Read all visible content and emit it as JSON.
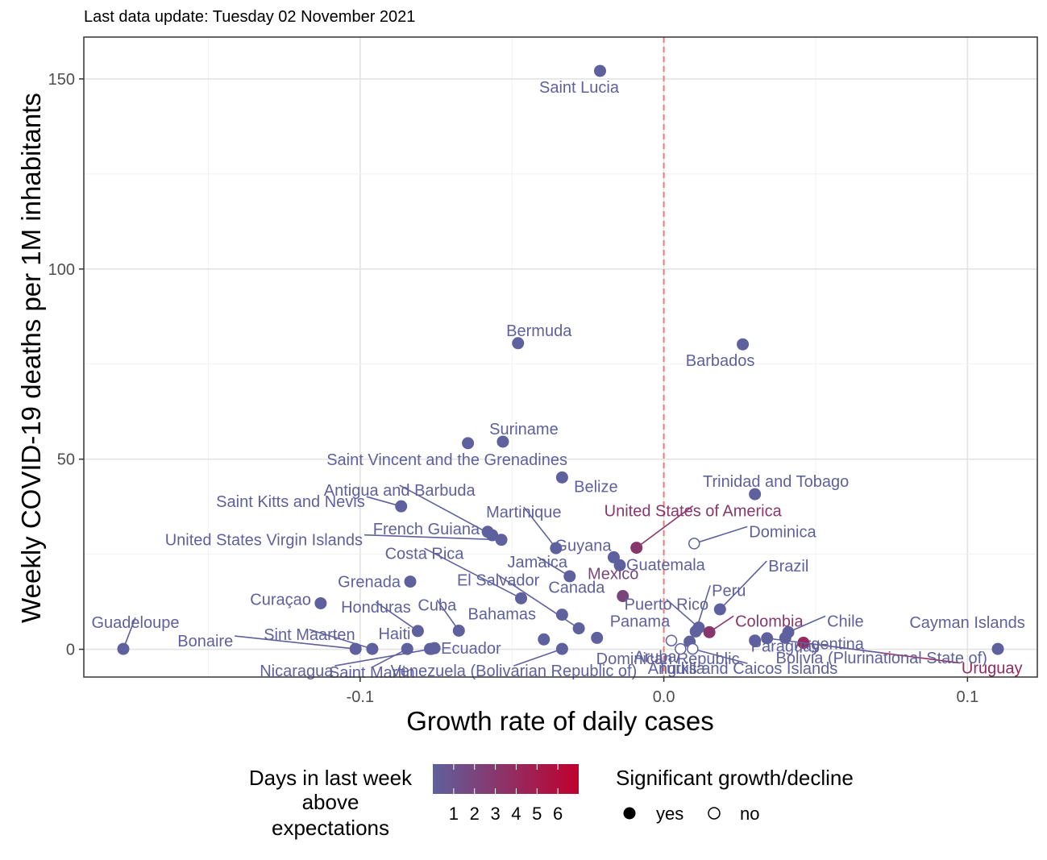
{
  "subtitle": "Last data update: Tuesday 02 November 2021",
  "colors": {
    "low": "#5e619d",
    "high": "#c0002e",
    "ref_line": "#f07a72",
    "grid_major": "#e3e3e3",
    "grid_minor": "#f1f1f1"
  },
  "legend": {
    "color_title_lines": [
      "Days in last week",
      "above",
      "expectations"
    ],
    "color_ticks": [
      "1",
      "2",
      "3",
      "4",
      "5",
      "6"
    ],
    "shape_title": "Significant growth/decline",
    "shape_yes": "yes",
    "shape_no": "no"
  },
  "chart_data": {
    "type": "scatter",
    "xlabel": "Growth rate of daily cases",
    "ylabel": "Weekly COVID-19 deaths per 1M inhabitants",
    "xlim": [
      -0.191,
      0.123
    ],
    "ylim": [
      -7.3,
      161
    ],
    "x_ticks": [
      {
        "value": -0.1,
        "label": "-0.1"
      },
      {
        "value": 0,
        "label": "0.0"
      },
      {
        "value": 0.1,
        "label": "0.1"
      }
    ],
    "y_ticks": [
      {
        "value": 0,
        "label": "0"
      },
      {
        "value": 50,
        "label": "50"
      },
      {
        "value": 100,
        "label": "100"
      },
      {
        "value": 150,
        "label": "150"
      }
    ],
    "grid": true,
    "reference_line_x": 0,
    "legend_position": "bottom",
    "points": [
      {
        "name": "Saint Lucia",
        "x": -0.021,
        "y": 152.1,
        "days": 0,
        "significant": true
      },
      {
        "name": "Bermuda",
        "x": -0.048,
        "y": 80.5,
        "days": 0,
        "significant": true
      },
      {
        "name": "Barbados",
        "x": 0.026,
        "y": 80.2,
        "days": 0,
        "significant": true
      },
      {
        "name": "Suriname",
        "x": -0.053,
        "y": 54.6,
        "days": 0,
        "significant": true
      },
      {
        "name": "Saint Vincent and the Grenadines",
        "x": -0.0645,
        "y": 54.2,
        "days": 0,
        "significant": true
      },
      {
        "name": "Belize",
        "x": -0.0335,
        "y": 45.2,
        "days": 0,
        "significant": true
      },
      {
        "name": "Trinidad and Tobago",
        "x": 0.03,
        "y": 40.8,
        "days": 0,
        "significant": true
      },
      {
        "name": "Saint Kitts and Nevis",
        "x": -0.0865,
        "y": 37.6,
        "days": 0,
        "significant": true
      },
      {
        "name": "Antigua and Barbuda",
        "x": -0.0565,
        "y": 30.0,
        "days": 0,
        "significant": true
      },
      {
        "name": "French Guiana",
        "x": -0.058,
        "y": 30.9,
        "days": 0,
        "significant": true
      },
      {
        "name": "United States Virgin Islands",
        "x": -0.0535,
        "y": 28.8,
        "days": 0,
        "significant": true
      },
      {
        "name": "United States of America",
        "x": -0.009,
        "y": 26.7,
        "days": 3,
        "significant": true
      },
      {
        "name": "Dominica",
        "x": 0.01,
        "y": 27.8,
        "days": 0,
        "significant": false
      },
      {
        "name": "Martinique",
        "x": -0.0355,
        "y": 26.6,
        "days": 0,
        "significant": true
      },
      {
        "name": "Guyana",
        "x": -0.0165,
        "y": 24.2,
        "days": 0,
        "significant": true
      },
      {
        "name": "Guatemala",
        "x": -0.0145,
        "y": 22.1,
        "days": 0,
        "significant": true
      },
      {
        "name": "Jamaica",
        "x": -0.031,
        "y": 19.2,
        "days": 0,
        "significant": true
      },
      {
        "name": "Grenada",
        "x": -0.0835,
        "y": 17.8,
        "days": 0,
        "significant": true
      },
      {
        "name": "Costa Rica",
        "x": -0.047,
        "y": 13.4,
        "days": 0,
        "significant": true
      },
      {
        "name": "Mexico",
        "x": -0.0135,
        "y": 14.0,
        "days": 2,
        "significant": true
      },
      {
        "name": "Curaçao",
        "x": -0.113,
        "y": 12.1,
        "days": 0,
        "significant": true
      },
      {
        "name": "Brazil",
        "x": 0.0185,
        "y": 10.5,
        "days": 0,
        "significant": true
      },
      {
        "name": "Canada",
        "x": -0.0335,
        "y": 9.1,
        "days": 0,
        "significant": true
      },
      {
        "name": "Puerto Rico",
        "x": 0.0115,
        "y": 5.7,
        "days": 0,
        "significant": true
      },
      {
        "name": "Peru",
        "x": 0.0105,
        "y": 4.7,
        "days": 0,
        "significant": true
      },
      {
        "name": "Colombia",
        "x": 0.015,
        "y": 4.5,
        "days": 3,
        "significant": true
      },
      {
        "name": "Chile",
        "x": 0.041,
        "y": 4.5,
        "days": 0,
        "significant": true
      },
      {
        "name": "El Salvador",
        "x": -0.028,
        "y": 5.5,
        "days": 0,
        "significant": true
      },
      {
        "name": "Cuba",
        "x": -0.0675,
        "y": 4.9,
        "days": 0,
        "significant": true
      },
      {
        "name": "Honduras",
        "x": -0.081,
        "y": 4.8,
        "days": 0,
        "significant": true
      },
      {
        "name": "Panama",
        "x": -0.022,
        "y": 3.0,
        "days": 0,
        "significant": true
      },
      {
        "name": "Bahamas",
        "x": -0.0395,
        "y": 2.6,
        "days": 0,
        "significant": true
      },
      {
        "name": "Argentina",
        "x": 0.04,
        "y": 3.0,
        "days": 0,
        "significant": true
      },
      {
        "name": "Uruguay",
        "x": 0.046,
        "y": 1.7,
        "days": 4,
        "significant": true
      },
      {
        "name": "Paraguay",
        "x": 0.03,
        "y": 2.3,
        "days": 0,
        "significant": true
      },
      {
        "name": "Dominican Republic",
        "x": 0.0085,
        "y": 2.0,
        "days": 0,
        "significant": true
      },
      {
        "name": "Cayman Islands",
        "x": 0.11,
        "y": 0.1,
        "days": 0,
        "significant": true
      },
      {
        "name": "Guadeloupe",
        "x": -0.178,
        "y": 0.1,
        "days": 0,
        "significant": true
      },
      {
        "name": "Bonaire",
        "x": -0.1015,
        "y": 0.1,
        "days": 0,
        "significant": true
      },
      {
        "name": "Sint Maarten",
        "x": -0.096,
        "y": 0.1,
        "days": 0,
        "significant": true
      },
      {
        "name": "Saint Martin",
        "x": -0.0845,
        "y": 0.1,
        "days": 0,
        "significant": true
      },
      {
        "name": "Nicaragua",
        "x": -0.0765,
        "y": 0.1,
        "days": 0,
        "significant": true
      },
      {
        "name": "Ecuador",
        "x": -0.0755,
        "y": 0.3,
        "days": 0,
        "significant": true
      },
      {
        "name": "Haiti",
        "x": -0.077,
        "y": 0.1,
        "days": 0,
        "significant": true
      },
      {
        "name": "Venezuela (Bolivarian Republic of)",
        "x": -0.0335,
        "y": 0.1,
        "days": 0,
        "significant": true
      },
      {
        "name": "Aruba",
        "x": 0.0025,
        "y": 2.3,
        "days": 0,
        "significant": false
      },
      {
        "name": "Anguilla",
        "x": 0.0055,
        "y": 0.1,
        "days": 0,
        "significant": false
      },
      {
        "name": "Turks and Caicos Islands",
        "x": 0.0095,
        "y": 0.1,
        "days": 0,
        "significant": false
      },
      {
        "name": "Bolivia (Plurinational State of)",
        "x": 0.034,
        "y": 2.9,
        "days": 0,
        "significant": true
      }
    ]
  }
}
